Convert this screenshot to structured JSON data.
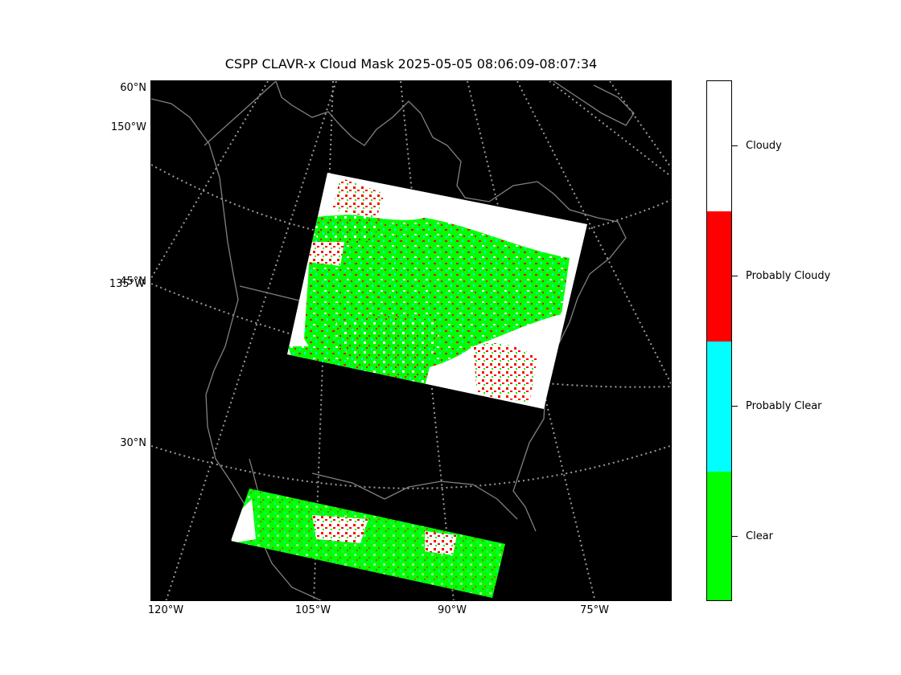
{
  "title": "CSPP CLAVR-x Cloud Mask 2025-05-05 08:06:09-08:07:34",
  "lat_labels": [
    "60°N",
    "150°W",
    "45°N",
    "135°W",
    "30°N"
  ],
  "lon_labels": [
    "120°W",
    "105°W",
    "90°W",
    "75°W"
  ],
  "colorbar": {
    "categories": [
      "Cloudy",
      "Probably Cloudy",
      "Probably Clear",
      "Clear"
    ],
    "colors": [
      "#ffffff",
      "#ff0000",
      "#00ffff",
      "#00ff00"
    ]
  },
  "colors": {
    "background": "#000000",
    "coastline": "#808080",
    "gridline": "#9a9a9a"
  }
}
